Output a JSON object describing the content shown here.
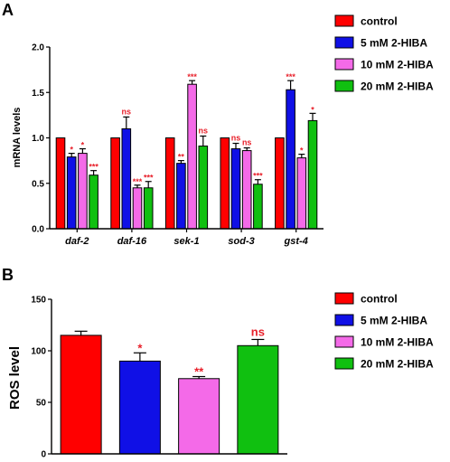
{
  "panel_a_letter": "A",
  "panel_b_letter": "B",
  "colors": {
    "control": "#ff0000",
    "5 mM 2-HIBA": "#1010e6",
    "10 mM 2-HIBA": "#f46ae8",
    "20 mM 2-HIBA": "#10c010",
    "significance": "#e8202a"
  },
  "chart_data": [
    {
      "type": "bar",
      "panel": "A",
      "ylabel": "mRNA levels",
      "ylim": [
        0,
        2.0
      ],
      "yticks": [
        "0.0",
        "0.5",
        "1.0",
        "1.5",
        "2.0"
      ],
      "categories": [
        "daf-2",
        "daf-16",
        "sek-1",
        "sod-3",
        "gst-4"
      ],
      "legend": [
        "control",
        "5 mM 2-HIBA",
        "10 mM 2-HIBA",
        "20 mM 2-HIBA"
      ],
      "legend_position": "top-right",
      "series": [
        {
          "name": "control",
          "values": [
            1.0,
            1.0,
            1.0,
            1.0,
            1.0
          ],
          "errors": [
            0,
            0,
            0,
            0,
            0
          ],
          "sig": [
            "",
            "",
            "",
            "",
            ""
          ]
        },
        {
          "name": "5 mM 2-HIBA",
          "values": [
            0.79,
            1.1,
            0.72,
            0.88,
            1.53
          ],
          "errors": [
            0.04,
            0.13,
            0.03,
            0.06,
            0.1
          ],
          "sig": [
            "*",
            "ns",
            "**",
            "ns",
            "***"
          ]
        },
        {
          "name": "10 mM 2-HIBA",
          "values": [
            0.83,
            0.45,
            1.59,
            0.86,
            0.78
          ],
          "errors": [
            0.05,
            0.03,
            0.04,
            0.03,
            0.04
          ],
          "sig": [
            "*",
            "***",
            "***",
            "ns",
            "*"
          ]
        },
        {
          "name": "20 mM 2-HIBA",
          "values": [
            0.59,
            0.45,
            0.91,
            0.49,
            1.19
          ],
          "errors": [
            0.05,
            0.07,
            0.11,
            0.05,
            0.08
          ],
          "sig": [
            "***",
            "***",
            "ns",
            "***",
            "*"
          ]
        }
      ]
    },
    {
      "type": "bar",
      "panel": "B",
      "ylabel": "ROS level",
      "ylim": [
        0,
        150
      ],
      "yticks": [
        "0",
        "50",
        "100",
        "150"
      ],
      "categories": [
        "control",
        "5 mM 2-HIBA",
        "10 mM 2-HIBA",
        "20 mM 2-HIBA"
      ],
      "values": [
        115,
        90,
        73,
        105
      ],
      "errors": [
        4,
        8,
        2,
        6
      ],
      "sig": [
        "",
        "*",
        "**",
        "ns"
      ],
      "legend": [
        "control",
        "5 mM 2-HIBA",
        "10 mM 2-HIBA",
        "20 mM 2-HIBA"
      ],
      "legend_position": "right"
    }
  ]
}
